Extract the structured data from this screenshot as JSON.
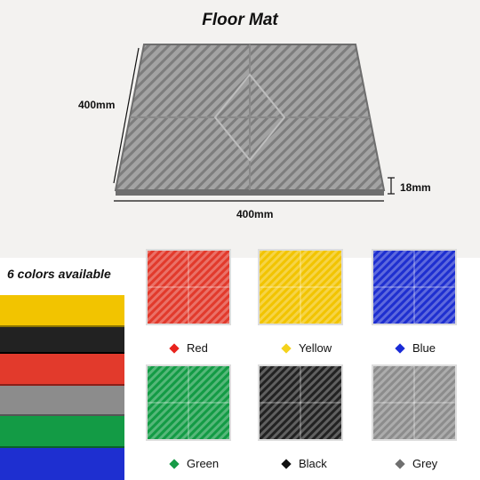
{
  "title": "Floor Mat",
  "dimensions": {
    "height_label": "400mm",
    "width_label": "400mm",
    "thickness_label": "18mm"
  },
  "availability_label": "6 colors available",
  "mat_color": "#8e8e8e",
  "colors": [
    {
      "name": "Red",
      "hex": "#e23a2c",
      "marker": "#e8231d"
    },
    {
      "name": "Yellow",
      "hex": "#f2c400",
      "marker": "#f4d21b"
    },
    {
      "name": "Blue",
      "hex": "#1e2fd0",
      "marker": "#1a2bd6"
    },
    {
      "name": "Green",
      "hex": "#139b45",
      "marker": "#169a47"
    },
    {
      "name": "Black",
      "hex": "#222222",
      "marker": "#111111"
    },
    {
      "name": "Grey",
      "hex": "#8c8c8c",
      "marker": "#6f6f6f"
    }
  ]
}
